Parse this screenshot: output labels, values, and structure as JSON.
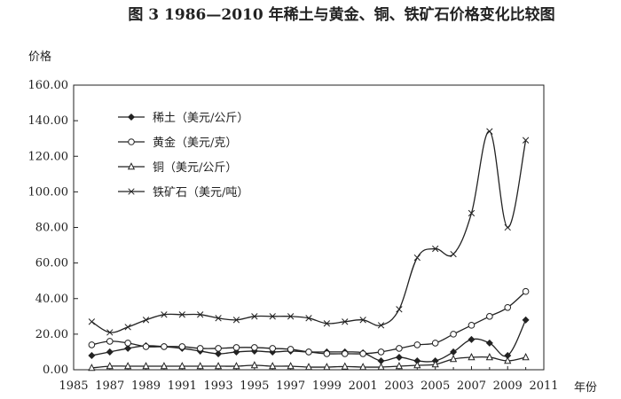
{
  "chart_data": {
    "type": "line",
    "title": "图 3    1986—2010 年稀土与黄金、铜、铁矿石价格变化比较图",
    "ylabel": "价格",
    "xlabel": "年份",
    "ylim": [
      0,
      160
    ],
    "xlim": [
      1985,
      2011
    ],
    "y_ticks": [
      "0.00",
      "20.00",
      "40.00",
      "60.00",
      "80.00",
      "100.00",
      "120.00",
      "140.00",
      "160.00"
    ],
    "x_ticks": [
      "1985",
      "1987",
      "1989",
      "1991",
      "1993",
      "1995",
      "1997",
      "1999",
      "2001",
      "2003",
      "2005",
      "2007",
      "2009",
      "2011"
    ],
    "grid": false,
    "legend_position": "top-left",
    "x": [
      1986,
      1987,
      1988,
      1989,
      1990,
      1991,
      1992,
      1993,
      1994,
      1995,
      1996,
      1997,
      1998,
      1999,
      2000,
      2001,
      2002,
      2003,
      2004,
      2005,
      2006,
      2007,
      2008,
      2009,
      2010
    ],
    "series": [
      {
        "name": "稀土（美元/公斤）",
        "marker": "diamond-filled",
        "values": [
          8,
          10,
          12,
          13.5,
          13,
          12,
          10.5,
          9,
          10,
          10.5,
          10,
          10.5,
          10,
          10,
          10,
          9.5,
          5,
          7,
          5,
          5,
          10,
          17,
          15,
          8,
          28
        ]
      },
      {
        "name": "黄金（美元/克）",
        "marker": "circle-open",
        "values": [
          14,
          16,
          15,
          13,
          13,
          13,
          12,
          12,
          12.5,
          12.5,
          12,
          11.5,
          10,
          9,
          9,
          9,
          10,
          12,
          14,
          15,
          20,
          25,
          30,
          35,
          44
        ]
      },
      {
        "name": "铜（美元/公斤）",
        "marker": "triangle-open",
        "values": [
          1,
          2,
          2,
          2,
          2,
          2,
          2,
          2,
          2,
          2.5,
          2,
          2,
          1.5,
          1.5,
          1.8,
          1.5,
          1.5,
          2,
          2.5,
          3,
          6,
          7,
          7,
          5,
          7
        ]
      },
      {
        "name": "铁矿石（美元/吨）",
        "marker": "cross",
        "values": [
          27,
          21,
          24,
          28,
          31,
          31,
          31,
          29,
          28,
          30,
          30,
          30,
          29,
          26,
          27,
          28,
          25,
          34,
          63,
          68,
          65,
          88,
          134,
          80,
          129
        ]
      }
    ]
  }
}
